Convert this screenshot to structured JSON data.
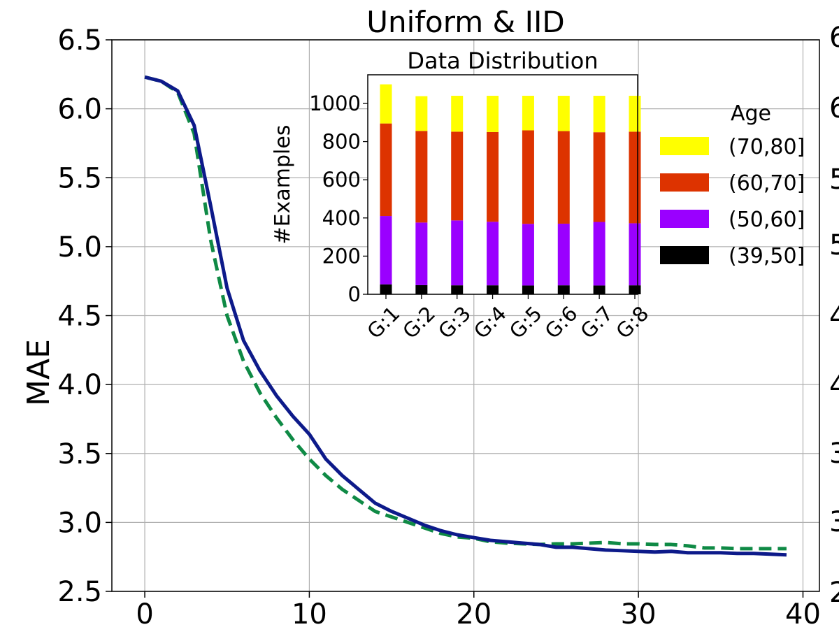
{
  "chart_data": [
    {
      "type": "line",
      "title": "Uniform & IID",
      "xlabel": "",
      "ylabel": "MAE",
      "xlim": [
        -2,
        41
      ],
      "ylim": [
        2.5,
        6.5
      ],
      "xticks": [
        "0",
        "10",
        "20",
        "30",
        "40"
      ],
      "yticks": [
        "2.5",
        "3.0",
        "3.5",
        "4.0",
        "4.5",
        "5.0",
        "5.5",
        "6.0",
        "6.5"
      ],
      "grid": true,
      "colors": {
        "solid": "#0d1a8a",
        "dashed": "#0f8a45"
      },
      "x": [
        0,
        1,
        2,
        3,
        4,
        5,
        6,
        7,
        8,
        9,
        10,
        11,
        12,
        13,
        14,
        15,
        16,
        17,
        18,
        19,
        20,
        21,
        22,
        23,
        24,
        25,
        26,
        27,
        28,
        29,
        30,
        31,
        32,
        33,
        34,
        35,
        36,
        37,
        38,
        39
      ],
      "series": [
        {
          "style": "solid",
          "values": [
            6.23,
            6.2,
            6.13,
            5.88,
            5.3,
            4.7,
            4.32,
            4.1,
            3.92,
            3.77,
            3.64,
            3.46,
            3.34,
            3.24,
            3.14,
            3.08,
            3.03,
            2.98,
            2.94,
            2.91,
            2.89,
            2.87,
            2.86,
            2.85,
            2.84,
            2.82,
            2.82,
            2.81,
            2.8,
            2.795,
            2.79,
            2.785,
            2.79,
            2.78,
            2.78,
            2.78,
            2.775,
            2.775,
            2.77,
            2.765
          ]
        },
        {
          "style": "dashed",
          "values": [
            6.23,
            6.2,
            6.12,
            5.82,
            5.05,
            4.5,
            4.17,
            3.94,
            3.76,
            3.6,
            3.46,
            3.34,
            3.24,
            3.16,
            3.08,
            3.04,
            3.0,
            2.96,
            2.92,
            2.895,
            2.885,
            2.86,
            2.85,
            2.845,
            2.84,
            2.845,
            2.845,
            2.85,
            2.855,
            2.845,
            2.845,
            2.84,
            2.84,
            2.83,
            2.815,
            2.815,
            2.81,
            2.81,
            2.81,
            2.81
          ]
        }
      ]
    },
    {
      "type": "bar",
      "stacked": true,
      "title": "Data Distribution",
      "xlabel": "",
      "ylabel": "#Examples",
      "ylim": [
        0,
        1150
      ],
      "yticks": [
        "0",
        "200",
        "400",
        "600",
        "800",
        "1000"
      ],
      "categories": [
        "G:1",
        "G:2",
        "G:3",
        "G:4",
        "G:5",
        "G:6",
        "G:7",
        "G:8"
      ],
      "legend_title": "Age",
      "legend_position": "right",
      "series": [
        {
          "name": "(39,50]",
          "color": "#000000",
          "values": [
            52,
            48,
            47,
            47,
            46,
            47,
            46,
            47
          ]
        },
        {
          "name": "(50,60]",
          "color": "#9a00ff",
          "values": [
            358,
            328,
            340,
            333,
            323,
            323,
            333,
            325
          ]
        },
        {
          "name": "(60,70]",
          "color": "#dd3300",
          "values": [
            485,
            480,
            465,
            470,
            490,
            485,
            470,
            480
          ]
        },
        {
          "name": "(70,80]",
          "color": "#ffff00",
          "values": [
            205,
            182,
            188,
            190,
            181,
            185,
            191,
            188
          ]
        }
      ]
    }
  ]
}
